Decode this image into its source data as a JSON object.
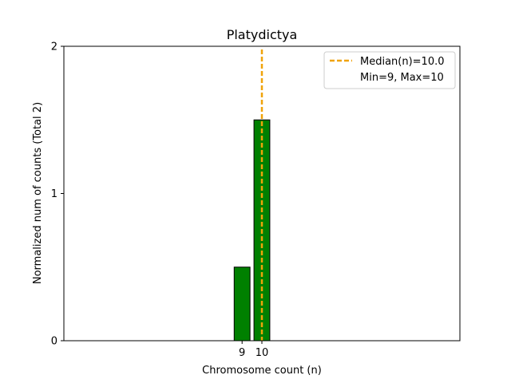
{
  "chart_data": {
    "type": "bar",
    "title": "Platydictya",
    "xlabel": "Chromosome count (n)",
    "ylabel": "Normalized num of counts     (Total 2)",
    "categories": [
      9,
      10
    ],
    "values": [
      0.5,
      1.5
    ],
    "bar_color": "#008000",
    "bar_edge_color": "#000000",
    "xlim": [
      0,
      20
    ],
    "ylim": [
      0,
      2
    ],
    "yticks": [
      0,
      1,
      2
    ],
    "xticks": [
      9,
      10
    ],
    "grid": false,
    "legend_position": "upper right",
    "median": {
      "value": 10.0,
      "color": "#f0a30a",
      "label": "Median(n)=10.0"
    },
    "legend_entries": [
      "Median(n)=10.0",
      "Min=9, Max=10"
    ]
  }
}
